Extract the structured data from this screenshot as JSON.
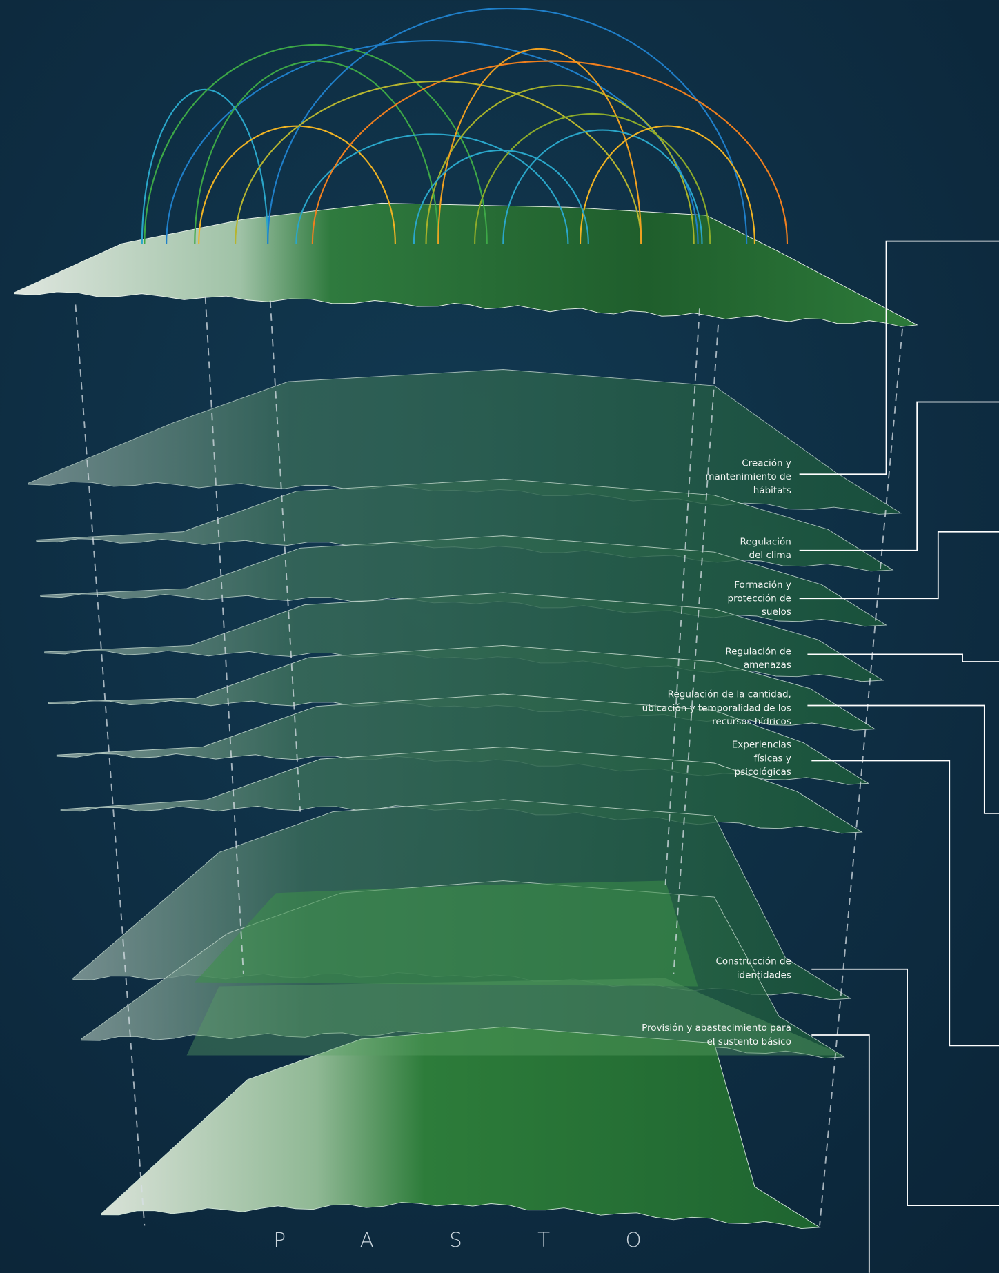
{
  "title": "PASTO",
  "services": [
    {
      "lines": [
        "Creación y",
        "mantenimiento de",
        "hábitats"
      ]
    },
    {
      "lines": [
        "Regulación",
        "del clima"
      ]
    },
    {
      "lines": [
        "Formación y",
        "protección de",
        "suelos"
      ]
    },
    {
      "lines": [
        "Regulación de",
        "amenazas"
      ]
    },
    {
      "lines": [
        "Regulación de la cantidad,",
        "ubicación y temporalidad de los",
        "recursos hídricos"
      ]
    },
    {
      "lines": [
        "Experiencias",
        "físicas y",
        "psicológicas"
      ]
    },
    {
      "lines": [
        "Construcción de",
        "identidades"
      ]
    },
    {
      "lines": [
        "Provisión y abastecimiento para",
        "el sustento básico"
      ]
    }
  ]
}
